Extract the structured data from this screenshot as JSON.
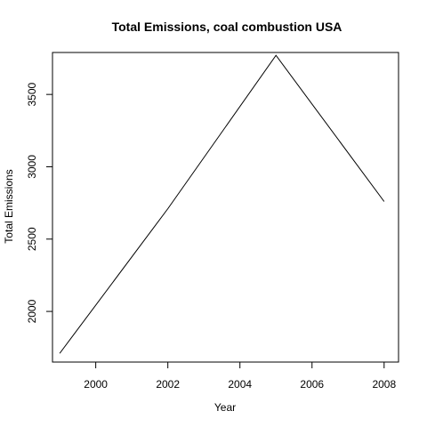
{
  "chart_data": {
    "type": "line",
    "title": "Total Emissions, coal combustion USA",
    "xlabel": "Year",
    "ylabel": "Total Emissions",
    "x": [
      1999,
      2002,
      2005,
      2008
    ],
    "series": [
      {
        "values": [
          1710,
          2710,
          3770,
          2760
        ]
      }
    ],
    "xlim": [
      1998.8,
      2008.4
    ],
    "ylim": [
      1650,
      3790
    ],
    "xticks": [
      "2000",
      "2002",
      "2004",
      "2006",
      "2008"
    ],
    "yticks": [
      "2000",
      "2500",
      "3000",
      "3500"
    ],
    "grid": false,
    "legend": "none",
    "line_color": "#000000"
  }
}
